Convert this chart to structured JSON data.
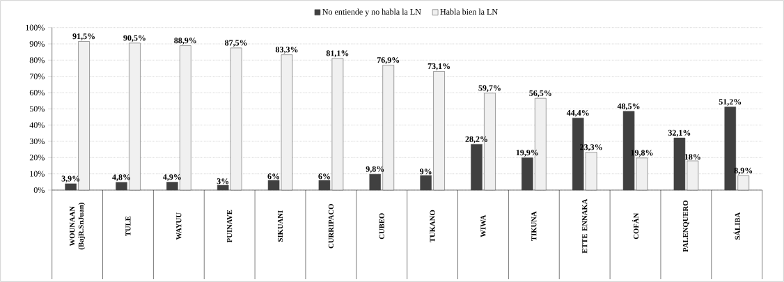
{
  "chart_data": {
    "type": "bar",
    "categories": [
      "WOUNAAN (BajR.SnJuan)",
      "TULE",
      "WAYUU",
      "PUINAVE",
      "SIKUANI",
      "CURRIPACO",
      "CUBEO",
      "TUKANO",
      "WIWA",
      "TIKUNA",
      "ETTE ENNAKA",
      "COFÁN",
      "PALENQUERO",
      "SÁLIBA"
    ],
    "series": [
      {
        "name": "No entiende y no habla la LN",
        "color": "#404040",
        "values": [
          3.9,
          4.8,
          4.9,
          3,
          6,
          6,
          9.8,
          9,
          28.2,
          19.9,
          44.4,
          48.5,
          32.1,
          51.2
        ],
        "value_labels": [
          "3,9%",
          "4,8%",
          "4,9%",
          "3%",
          "6%",
          "6%",
          "9,8%",
          "9%",
          "28,2%",
          "19,9%",
          "44,4%",
          "48,5%",
          "32,1%",
          "51,2%"
        ]
      },
      {
        "name": "Habla bien la LN",
        "color": "#f0f0f0",
        "values": [
          91.5,
          90.5,
          88.9,
          87.5,
          83.3,
          81.1,
          76.9,
          73.1,
          59.7,
          56.5,
          23.3,
          19.8,
          18,
          8.9
        ],
        "value_labels": [
          "91,5%",
          "90,5%",
          "88,9%",
          "87,5%",
          "83,3%",
          "81,1%",
          "76,9%",
          "73,1%",
          "59,7%",
          "56,5%",
          "23,3%",
          "19,8%",
          "18%",
          "8,9%"
        ]
      }
    ],
    "ylim": [
      0,
      100
    ],
    "yticks": [
      {
        "value": 0,
        "label": "0%"
      },
      {
        "value": 10,
        "label": "10%"
      },
      {
        "value": 20,
        "label": "20%"
      },
      {
        "value": 30,
        "label": "30%"
      },
      {
        "value": 40,
        "label": "40%"
      },
      {
        "value": 50,
        "label": "50%"
      },
      {
        "value": 60,
        "label": "60%"
      },
      {
        "value": 70,
        "label": "70%"
      },
      {
        "value": 80,
        "label": "80%"
      },
      {
        "value": 90,
        "label": "90%"
      },
      {
        "value": 100,
        "label": "100%"
      }
    ],
    "grid": "y",
    "legend": "top"
  }
}
